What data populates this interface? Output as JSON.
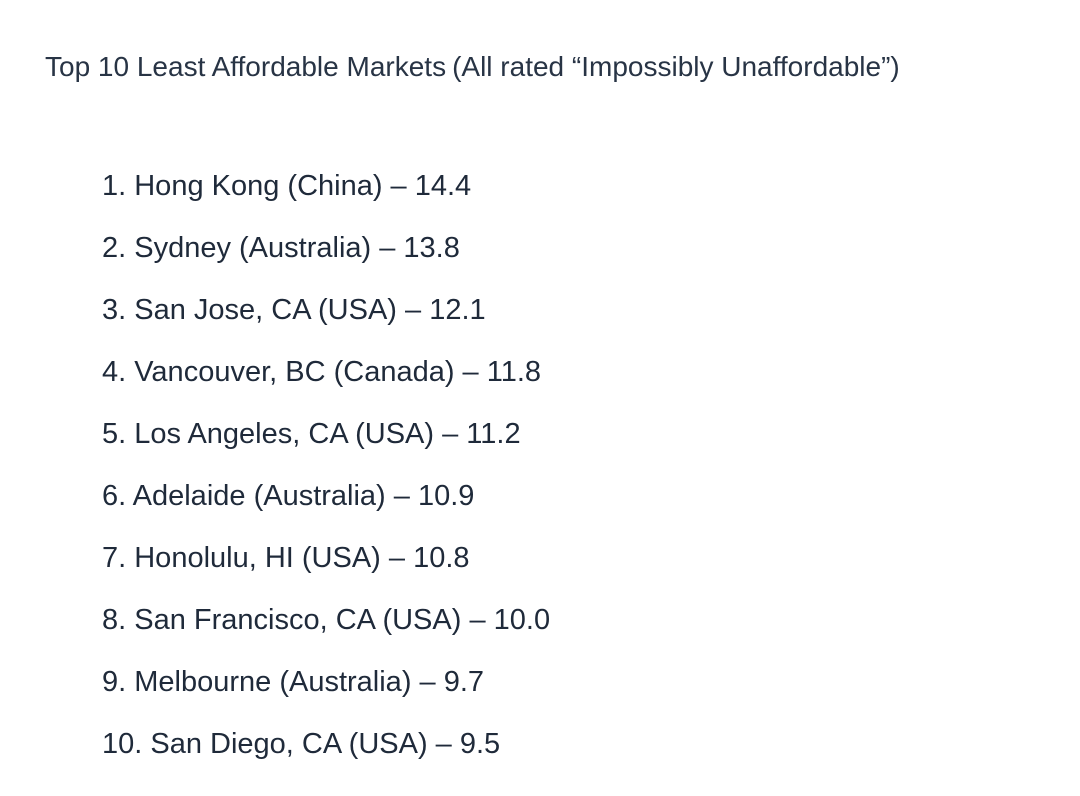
{
  "document": {
    "title": "Top 10 Least Affordable Markets",
    "subtitle": "(All rated “Impossibly Unaffordable”)"
  },
  "ranking": [
    "1. Hong Kong (China) – 14.4",
    "2. Sydney (Australia) – 13.8",
    "3. San Jose, CA (USA) – 12.1",
    "4. Vancouver, BC (Canada) – 11.8",
    "5. Los Angeles, CA (USA) – 11.2",
    "6. Adelaide (Australia) – 10.9",
    "7. Honolulu, HI (USA) – 10.8",
    "8. San Francisco, CA (USA) – 10.0",
    "9. Melbourne (Australia) – 9.7",
    "10. San Diego, CA (USA) – 9.5"
  ]
}
